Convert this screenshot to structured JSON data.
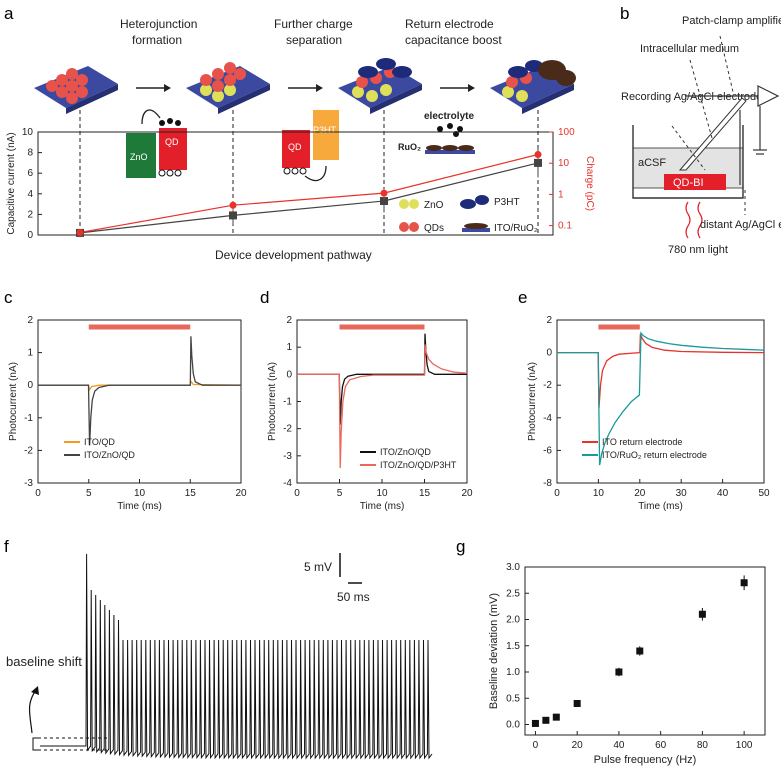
{
  "panel_labels": [
    "a",
    "b",
    "c",
    "d",
    "e",
    "f",
    "g"
  ],
  "colors": {
    "red": "#e8322b",
    "dark": "#222222",
    "orange": "#f39a1f",
    "teal": "#1a9a9a",
    "salmon": "#e9685c",
    "zno_green": "#1f7a3a",
    "qd_red": "#e3202a",
    "p3ht_orange": "#f7a93b",
    "substrate": "#3b4aa0",
    "bar": "#e9685c",
    "zno_dot": "#dfe05a",
    "qd_dot": "#e7534a",
    "p3ht_dot": "#1e2a7a",
    "ruo2": "#4a2a18"
  },
  "panel_a": {
    "steps": [
      "Heterojunction formation",
      "Further charge separation",
      "Return electrode capacitance boost"
    ],
    "box_zno": "ZnO",
    "box_qd": "QD",
    "box_p3ht": "P3HT",
    "electrolyte_label": "electrolyte",
    "ruo2_label": "RuO₂",
    "legend": [
      "ZnO",
      "QDs",
      "P3HT",
      "ITO/RuO₂"
    ],
    "xlabel": "Device development pathway"
  },
  "panel_b": {
    "labels": [
      "Patch-clamp amplifier",
      "Intracellular medium",
      "Recording Ag/AgCl electrode",
      "aCSF",
      "QD-BI",
      "780 nm light",
      "distant Ag/AgCl electrode"
    ]
  },
  "panel_f": {
    "scale_mv": "5 mV",
    "scale_ms": "50 ms",
    "baseline_label": "baseline shift"
  },
  "chart_data": [
    {
      "id": "a",
      "type": "line",
      "title": "",
      "xlabel": "Device development pathway",
      "ylabel": "Capacitive current (nA)",
      "ylabel_right": "Charge (pC)",
      "ylim": [
        0,
        10
      ],
      "ylim_right_log": [
        0.05,
        100
      ],
      "yticks": [
        0,
        2,
        4,
        6,
        8,
        10
      ],
      "yticks_right": [
        "0.1",
        "1",
        "10",
        "100"
      ],
      "categories": [
        "1",
        "2",
        "3",
        "4"
      ],
      "series": [
        {
          "name": "Capacitive current",
          "axis": "left",
          "values": [
            0.2,
            1.9,
            3.3,
            7.0
          ],
          "errors": [
            0.3,
            0.9,
            1.1,
            1.4
          ]
        },
        {
          "name": "Charge",
          "axis": "right",
          "values": [
            0.06,
            0.45,
            1.1,
            19
          ],
          "errors_rel": [
            0.3,
            0.35,
            0.35,
            0.3
          ]
        }
      ]
    },
    {
      "id": "c",
      "type": "line",
      "xlabel": "Time (ms)",
      "ylabel": "Photocurrent (nA)",
      "xlim": [
        0,
        20
      ],
      "ylim": [
        -3,
        2
      ],
      "xticks": [
        0,
        5,
        10,
        15,
        20
      ],
      "yticks": [
        -3,
        -2,
        -1,
        0,
        1,
        2
      ],
      "light_on": [
        5,
        15
      ],
      "legend": [
        "ITO/QD",
        "ITO/ZnO/QD"
      ],
      "series": [
        {
          "name": "ITO/QD",
          "x": [
            0,
            4.98,
            5.05,
            5.3,
            6,
            15,
            15.05,
            15.3,
            20
          ],
          "y": [
            0,
            0,
            -0.15,
            -0.04,
            0,
            0,
            0.12,
            0.02,
            0
          ]
        },
        {
          "name": "ITO/ZnO/QD",
          "x": [
            0,
            4.98,
            5.08,
            5.2,
            5.35,
            5.6,
            6.0,
            7.0,
            15,
            15.06,
            15.15,
            15.3,
            15.5,
            16.2,
            20
          ],
          "y": [
            0,
            0,
            -1.85,
            -1.0,
            -0.45,
            -0.18,
            -0.07,
            0,
            0,
            1.5,
            0.9,
            0.35,
            0.1,
            0,
            0
          ]
        }
      ]
    },
    {
      "id": "d",
      "type": "line",
      "xlabel": "Time (ms)",
      "ylabel": "Photocurrent (nA)",
      "xlim": [
        0,
        20
      ],
      "ylim": [
        -4,
        2
      ],
      "xticks": [
        0,
        5,
        10,
        15,
        20
      ],
      "yticks": [
        -4,
        -3,
        -2,
        -1,
        0,
        1,
        2
      ],
      "light_on": [
        5,
        15
      ],
      "legend": [
        "ITO/ZnO/QD",
        "ITO/ZnO/QD/P3HT"
      ],
      "series": [
        {
          "name": "ITO/ZnO/QD",
          "x": [
            0,
            4.98,
            5.08,
            5.2,
            5.35,
            5.6,
            6.0,
            7.0,
            15,
            15.06,
            15.15,
            15.3,
            15.5,
            16.2,
            20
          ],
          "y": [
            0,
            0,
            -1.85,
            -1.0,
            -0.45,
            -0.18,
            -0.07,
            0,
            0,
            1.5,
            0.9,
            0.35,
            0.1,
            0,
            0
          ]
        },
        {
          "name": "ITO/ZnO/QD/P3HT",
          "x": [
            0,
            4.98,
            5.08,
            5.2,
            5.4,
            5.7,
            6.2,
            7.5,
            9,
            15,
            15.06,
            15.2,
            15.5,
            16.0,
            17.0,
            18.5,
            20
          ],
          "y": [
            0,
            0,
            -3.45,
            -2.1,
            -1.0,
            -0.45,
            -0.2,
            -0.08,
            -0.03,
            -0.03,
            1.1,
            0.8,
            0.55,
            0.38,
            0.2,
            0.08,
            0.04
          ]
        }
      ]
    },
    {
      "id": "e",
      "type": "line",
      "xlabel": "Time (ms)",
      "ylabel": "Photocurrent (nA)",
      "xlim": [
        0,
        50
      ],
      "ylim": [
        -8,
        2
      ],
      "xticks": [
        0,
        10,
        20,
        30,
        40,
        50
      ],
      "yticks": [
        -8,
        -6,
        -4,
        -2,
        0,
        2
      ],
      "light_on": [
        10,
        20
      ],
      "legend": [
        "ITO return electrode",
        "ITO/RuO₂ return electrode"
      ],
      "series": [
        {
          "name": "ITO return electrode",
          "x": [
            0,
            9.95,
            10.15,
            10.5,
            11,
            12,
            13.5,
            15,
            20,
            20.15,
            20.6,
            21.5,
            23,
            26,
            30,
            40,
            50
          ],
          "y": [
            0,
            0,
            -3.4,
            -2.0,
            -1.1,
            -0.5,
            -0.22,
            -0.1,
            0,
            1.15,
            0.85,
            0.55,
            0.32,
            0.15,
            0.07,
            0.02,
            0
          ]
        },
        {
          "name": "ITO/RuO₂ return electrode",
          "x": [
            0,
            9.95,
            10.3,
            10.8,
            11.5,
            12.5,
            14,
            16,
            18,
            19.9,
            20.3,
            20.8,
            22,
            24,
            27,
            30,
            35,
            40,
            45,
            50
          ],
          "y": [
            0,
            0,
            -6.9,
            -6.2,
            -5.6,
            -5.0,
            -4.3,
            -3.6,
            -3.0,
            -2.6,
            1.2,
            1.05,
            0.85,
            0.7,
            0.55,
            0.45,
            0.33,
            0.25,
            0.2,
            0.15
          ]
        }
      ]
    },
    {
      "id": "g",
      "type": "scatter",
      "xlabel": "Pulse frequency (Hz)",
      "ylabel": "Baseline deviation (mV)",
      "xlim": [
        -5,
        110
      ],
      "ylim": [
        -0.2,
        3.0
      ],
      "xticks": [
        0,
        20,
        40,
        60,
        80,
        100
      ],
      "yticks": [
        0.0,
        0.5,
        1.0,
        1.5,
        2.0,
        2.5,
        3.0
      ],
      "x": [
        0,
        5,
        10,
        20,
        40,
        50,
        80,
        100
      ],
      "y": [
        0.02,
        0.08,
        0.14,
        0.4,
        1.0,
        1.4,
        2.1,
        2.7
      ],
      "errors": [
        0.02,
        0.03,
        0.03,
        0.05,
        0.08,
        0.09,
        0.12,
        0.14
      ]
    }
  ]
}
